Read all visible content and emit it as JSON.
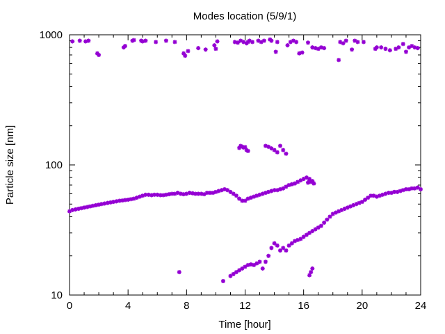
{
  "chart_data": {
    "type": "scatter",
    "title": "Modes location (5/9/1)",
    "xlabel": "Time [hour]",
    "ylabel": "Particle size [nm]",
    "xlim": [
      0,
      24
    ],
    "ylim": [
      10,
      1000
    ],
    "yscale": "log",
    "grid": false,
    "legend": "none",
    "marker_color": "#9400d3",
    "marker_symbol": "✱",
    "xticks": [
      {
        "value": 0,
        "label": "0"
      },
      {
        "value": 4,
        "label": "4"
      },
      {
        "value": 8,
        "label": "8"
      },
      {
        "value": 12,
        "label": "12"
      },
      {
        "value": 16,
        "label": "16"
      },
      {
        "value": 20,
        "label": "20"
      },
      {
        "value": 24,
        "label": "24"
      }
    ],
    "yticks": [
      {
        "value": 10,
        "label": "10"
      },
      {
        "value": 100,
        "label": "100"
      },
      {
        "value": 1000,
        "label": "1000"
      }
    ],
    "series": [
      {
        "x": [
          0,
          0.2,
          0.4,
          0.6,
          0.8,
          1.0,
          1.2,
          1.4,
          1.6,
          1.8,
          2.0,
          2.2,
          2.4,
          2.6,
          2.8,
          3.0,
          3.2,
          3.4,
          3.6,
          3.8,
          4.0,
          4.2,
          4.4,
          4.6,
          4.8,
          5.0,
          5.2,
          5.4,
          5.6,
          5.8,
          6.0,
          6.2,
          6.4,
          6.6,
          6.8,
          7.0,
          7.2,
          7.4,
          7.6,
          7.8,
          8.0,
          8.2,
          8.4,
          8.6,
          8.8,
          9.0,
          9.2,
          9.4,
          9.6,
          9.8,
          10.0,
          10.2,
          10.4,
          10.6,
          10.8,
          11.0,
          11.2,
          11.4,
          11.6,
          11.8,
          12.0,
          12.2,
          12.4,
          12.6,
          12.8,
          13.0,
          13.2,
          13.4,
          13.6,
          13.8,
          14.0,
          14.2,
          14.4,
          14.6,
          14.8,
          15.0,
          15.2,
          15.4,
          15.6,
          15.8,
          16.0,
          16.2,
          16.4,
          16.6
        ],
        "y": [
          44,
          45,
          45.5,
          46,
          46.5,
          47,
          47.5,
          48,
          48.5,
          49,
          49.5,
          50,
          50.5,
          51,
          51.5,
          52,
          52.5,
          53,
          53.3,
          53.7,
          54,
          54.5,
          55,
          56,
          57,
          58,
          59,
          59,
          58.5,
          59,
          59,
          58.5,
          58.5,
          59,
          59.5,
          60,
          60,
          61,
          60,
          59.5,
          60,
          61,
          60.5,
          60,
          60,
          60,
          59.5,
          61,
          61,
          61,
          62,
          63,
          64,
          65,
          64,
          62,
          60,
          58,
          55,
          53,
          53,
          55,
          56,
          57,
          58,
          59,
          60,
          61,
          62,
          63,
          64,
          64,
          65,
          66,
          68,
          70,
          71,
          72,
          74,
          76,
          78,
          80,
          78,
          75
        ]
      },
      {
        "x": [
          16.3,
          16.4,
          16.5,
          16.6,
          16.7
        ],
        "y": [
          73,
          76,
          74,
          75,
          72
        ]
      },
      {
        "x": [
          10.5,
          11.0,
          11.2,
          11.4,
          11.6,
          11.8,
          12.0,
          12.2,
          12.4,
          12.6,
          12.8,
          13.0,
          13.2,
          13.4,
          13.6,
          13.8,
          14.0,
          14.2,
          14.4,
          14.6,
          14.8,
          15.0,
          15.2,
          15.4,
          15.6,
          15.8,
          16.0,
          16.2,
          16.4,
          16.6,
          16.8,
          17.0,
          17.2,
          17.4,
          17.6,
          17.8,
          18.0,
          18.2,
          18.4,
          18.6,
          18.8,
          19.0,
          19.2,
          19.4,
          19.6,
          19.8,
          20.0,
          20.2,
          20.4,
          20.6,
          20.8,
          21.0,
          21.2,
          21.4,
          21.6,
          21.8,
          22.0,
          22.2,
          22.4,
          22.6,
          22.8,
          23.0,
          23.2,
          23.4,
          23.6,
          23.8,
          24.0
        ],
        "y": [
          12.8,
          14,
          14.5,
          15,
          15.5,
          16,
          16.5,
          17,
          17.2,
          17,
          17.5,
          18,
          16,
          18,
          20,
          23,
          25,
          24,
          22,
          23,
          22,
          24,
          25,
          26,
          26.5,
          27,
          28,
          29,
          30,
          31,
          32,
          33,
          34,
          36,
          38,
          40,
          42,
          43,
          44,
          45,
          46,
          47,
          48,
          49,
          50,
          51,
          52,
          54,
          56,
          58,
          58,
          57,
          58,
          59,
          60,
          61,
          61,
          62,
          62,
          63,
          64,
          65,
          65,
          66,
          66,
          67,
          65
        ]
      },
      {
        "x": [
          7.5,
          16.4,
          16.5,
          16.6
        ],
        "y": [
          15,
          14.2,
          15,
          16
        ]
      },
      {
        "x": [
          11.6,
          11.7,
          11.8,
          11.9,
          12.0,
          12.1,
          12.2,
          13.4,
          13.6,
          13.8,
          14.0,
          14.2,
          14.4,
          14.6,
          14.8
        ],
        "y": [
          135,
          140,
          138,
          136,
          137,
          130,
          128,
          140,
          138,
          134,
          130,
          125,
          140,
          130,
          122
        ]
      },
      {
        "x": [
          0.2,
          0.7,
          1.1,
          1.3,
          1.9,
          2.0,
          3.7,
          3.8,
          4.3,
          4.4,
          4.9,
          5.0,
          5.2,
          5.9,
          6.6,
          7.2,
          7.8,
          7.9,
          8.1,
          8.8,
          9.3,
          9.9,
          10.0,
          10.1,
          11.3,
          11.5,
          11.7,
          11.9,
          12.1,
          12.2,
          12.3,
          12.5,
          12.9,
          13.1,
          13.3,
          13.7,
          13.8,
          14.1,
          14.2,
          14.9,
          15.1,
          15.3,
          15.5,
          15.7,
          15.9,
          16.3,
          16.6,
          16.8,
          17.0,
          17.2,
          17.4,
          18.4,
          18.5,
          18.7,
          18.9,
          19.3,
          19.5,
          19.7,
          20.1,
          20.9,
          21.0,
          21.3,
          21.6,
          21.9,
          22.3,
          22.5,
          22.8,
          23.0,
          23.2,
          23.4,
          23.6,
          23.8
        ],
        "y": [
          890,
          900,
          890,
          900,
          720,
          700,
          800,
          820,
          900,
          910,
          900,
          890,
          900,
          880,
          900,
          880,
          720,
          690,
          750,
          790,
          770,
          830,
          780,
          890,
          880,
          870,
          900,
          880,
          860,
          880,
          900,
          880,
          900,
          880,
          900,
          920,
          900,
          740,
          880,
          830,
          880,
          900,
          880,
          720,
          730,
          870,
          800,
          790,
          780,
          800,
          790,
          640,
          880,
          860,
          900,
          770,
          900,
          880,
          880,
          780,
          800,
          800,
          780,
          760,
          780,
          800,
          850,
          740,
          800,
          820,
          800,
          790
        ]
      }
    ]
  }
}
